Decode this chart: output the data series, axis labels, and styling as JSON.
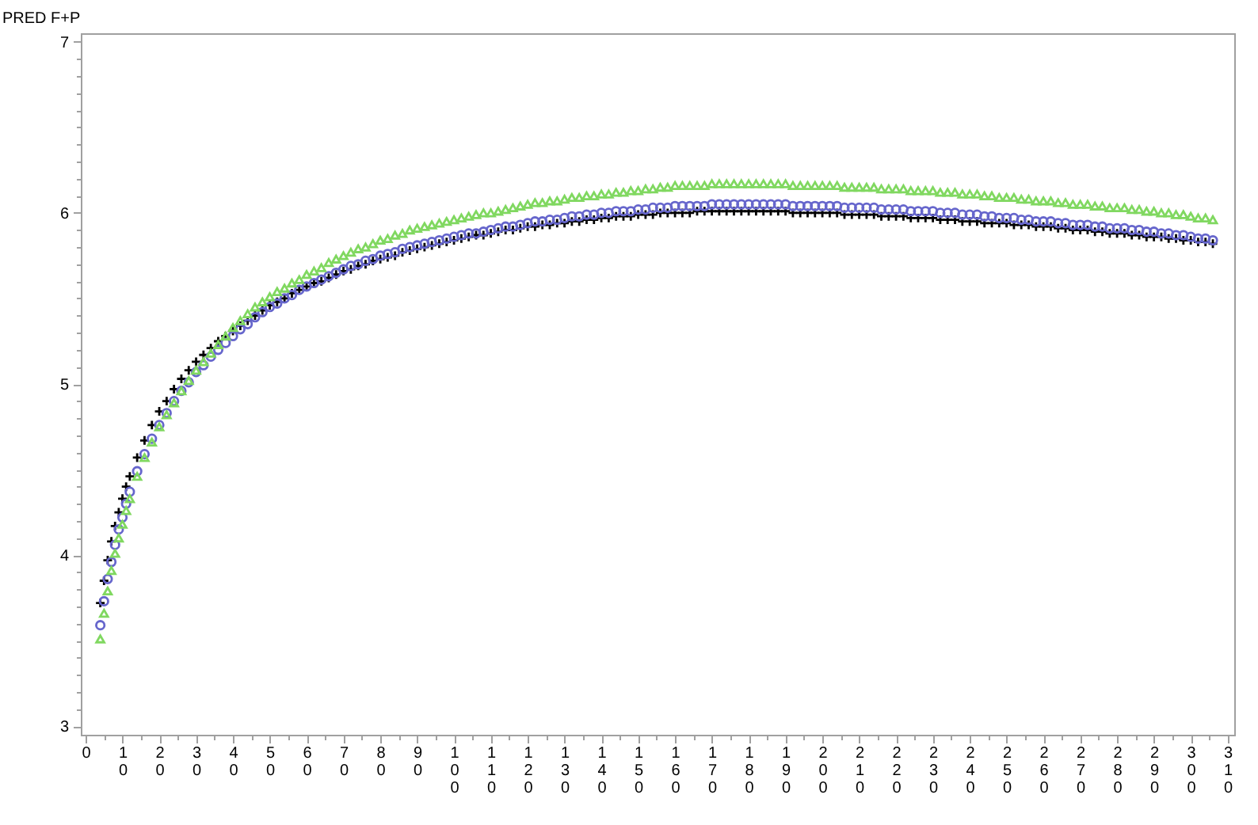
{
  "chart_data": {
    "type": "scatter",
    "ylabel": "PRED F+P",
    "x": [
      4,
      5,
      6,
      7,
      8,
      9,
      10,
      11,
      12,
      14,
      16,
      18,
      20,
      22,
      24,
      26,
      28,
      30,
      32,
      34,
      36,
      38,
      40,
      42,
      44,
      46,
      48,
      50,
      52,
      54,
      56,
      58,
      60,
      62,
      64,
      66,
      68,
      70,
      72,
      74,
      76,
      78,
      80,
      82,
      84,
      86,
      88,
      90,
      92,
      94,
      96,
      98,
      100,
      102,
      104,
      106,
      108,
      110,
      112,
      114,
      116,
      118,
      120,
      122,
      124,
      126,
      128,
      130,
      132,
      134,
      136,
      138,
      140,
      142,
      144,
      146,
      148,
      150,
      152,
      154,
      156,
      158,
      160,
      162,
      164,
      166,
      168,
      170,
      172,
      174,
      176,
      178,
      180,
      182,
      184,
      186,
      188,
      190,
      192,
      194,
      196,
      198,
      200,
      202,
      204,
      206,
      208,
      210,
      212,
      214,
      216,
      218,
      220,
      222,
      224,
      226,
      228,
      230,
      232,
      234,
      236,
      238,
      240,
      242,
      244,
      246,
      248,
      250,
      252,
      254,
      256,
      258,
      260,
      262,
      264,
      266,
      268,
      270,
      272,
      274,
      276,
      278,
      280,
      282,
      284,
      286,
      288,
      290,
      292,
      294,
      296,
      298,
      300,
      302,
      304,
      306
    ],
    "series": [
      {
        "color": "#000000",
        "marker": "cross",
        "values": [
          3.72,
          3.85,
          3.97,
          4.08,
          4.17,
          4.25,
          4.33,
          4.4,
          4.46,
          4.57,
          4.67,
          4.76,
          4.84,
          4.9,
          4.97,
          5.03,
          5.08,
          5.13,
          5.17,
          5.21,
          5.25,
          5.28,
          5.31,
          5.34,
          5.37,
          5.4,
          5.43,
          5.46,
          5.48,
          5.5,
          5.53,
          5.55,
          5.57,
          5.59,
          5.6,
          5.62,
          5.64,
          5.66,
          5.67,
          5.69,
          5.7,
          5.72,
          5.73,
          5.74,
          5.75,
          5.77,
          5.78,
          5.79,
          5.8,
          5.81,
          5.82,
          5.83,
          5.84,
          5.85,
          5.86,
          5.87,
          5.87,
          5.88,
          5.89,
          5.9,
          5.9,
          5.91,
          5.92,
          5.92,
          5.93,
          5.93,
          5.94,
          5.94,
          5.95,
          5.95,
          5.96,
          5.96,
          5.97,
          5.97,
          5.98,
          5.98,
          5.98,
          5.99,
          5.99,
          5.99,
          6.0,
          6.0,
          6.0,
          6.0,
          6.0,
          6.01,
          6.01,
          6.01,
          6.01,
          6.01,
          6.01,
          6.01,
          6.01,
          6.01,
          6.01,
          6.01,
          6.01,
          6.01,
          6.0,
          6.0,
          6.0,
          6.0,
          6.0,
          6.0,
          6.0,
          5.99,
          5.99,
          5.99,
          5.99,
          5.99,
          5.98,
          5.98,
          5.98,
          5.98,
          5.97,
          5.97,
          5.97,
          5.97,
          5.96,
          5.96,
          5.96,
          5.95,
          5.95,
          5.95,
          5.94,
          5.94,
          5.94,
          5.94,
          5.93,
          5.93,
          5.93,
          5.92,
          5.92,
          5.92,
          5.91,
          5.91,
          5.9,
          5.9,
          5.9,
          5.89,
          5.89,
          5.88,
          5.88,
          5.88,
          5.87,
          5.87,
          5.86,
          5.86,
          5.86,
          5.85,
          5.85,
          5.84,
          5.84,
          5.83,
          5.83,
          5.82
        ]
      },
      {
        "color": "#6666cc",
        "marker": "circle",
        "values": [
          3.59,
          3.73,
          3.86,
          3.96,
          4.06,
          4.15,
          4.22,
          4.3,
          4.37,
          4.49,
          4.59,
          4.68,
          4.76,
          4.83,
          4.9,
          4.96,
          5.01,
          5.07,
          5.11,
          5.16,
          5.2,
          5.24,
          5.28,
          5.32,
          5.35,
          5.39,
          5.42,
          5.45,
          5.47,
          5.5,
          5.52,
          5.55,
          5.57,
          5.59,
          5.61,
          5.63,
          5.65,
          5.67,
          5.69,
          5.7,
          5.72,
          5.73,
          5.75,
          5.76,
          5.77,
          5.79,
          5.8,
          5.81,
          5.82,
          5.83,
          5.84,
          5.85,
          5.86,
          5.87,
          5.88,
          5.88,
          5.89,
          5.9,
          5.91,
          5.92,
          5.92,
          5.93,
          5.94,
          5.95,
          5.95,
          5.96,
          5.96,
          5.97,
          5.98,
          5.98,
          5.99,
          5.99,
          6.0,
          6.0,
          6.01,
          6.01,
          6.01,
          6.02,
          6.02,
          6.03,
          6.03,
          6.03,
          6.04,
          6.04,
          6.04,
          6.04,
          6.04,
          6.05,
          6.05,
          6.05,
          6.05,
          6.05,
          6.05,
          6.05,
          6.05,
          6.05,
          6.05,
          6.05,
          6.04,
          6.04,
          6.04,
          6.04,
          6.04,
          6.04,
          6.04,
          6.03,
          6.03,
          6.03,
          6.03,
          6.03,
          6.02,
          6.02,
          6.02,
          6.02,
          6.01,
          6.01,
          6.01,
          6.01,
          6.0,
          6.0,
          6.0,
          5.99,
          5.99,
          5.99,
          5.98,
          5.98,
          5.97,
          5.97,
          5.97,
          5.96,
          5.96,
          5.95,
          5.95,
          5.95,
          5.94,
          5.94,
          5.93,
          5.93,
          5.93,
          5.92,
          5.92,
          5.91,
          5.91,
          5.91,
          5.9,
          5.9,
          5.89,
          5.89,
          5.88,
          5.88,
          5.87,
          5.87,
          5.86,
          5.85,
          5.85,
          5.84
        ]
      },
      {
        "color": "#80d860",
        "marker": "triangle",
        "values": [
          3.51,
          3.66,
          3.79,
          3.91,
          4.01,
          4.1,
          4.18,
          4.26,
          4.33,
          4.46,
          4.57,
          4.66,
          4.75,
          4.82,
          4.89,
          4.96,
          5.02,
          5.08,
          5.13,
          5.18,
          5.23,
          5.28,
          5.33,
          5.37,
          5.41,
          5.45,
          5.48,
          5.51,
          5.54,
          5.56,
          5.59,
          5.61,
          5.64,
          5.66,
          5.68,
          5.71,
          5.73,
          5.75,
          5.77,
          5.79,
          5.8,
          5.82,
          5.84,
          5.85,
          5.87,
          5.88,
          5.9,
          5.91,
          5.92,
          5.93,
          5.94,
          5.95,
          5.96,
          5.97,
          5.98,
          5.99,
          6.0,
          6.0,
          6.01,
          6.02,
          6.03,
          6.04,
          6.05,
          6.06,
          6.06,
          6.07,
          6.07,
          6.08,
          6.09,
          6.09,
          6.1,
          6.1,
          6.11,
          6.11,
          6.12,
          6.12,
          6.13,
          6.13,
          6.14,
          6.14,
          6.15,
          6.15,
          6.16,
          6.16,
          6.16,
          6.16,
          6.16,
          6.17,
          6.17,
          6.17,
          6.17,
          6.17,
          6.17,
          6.17,
          6.17,
          6.17,
          6.17,
          6.17,
          6.16,
          6.16,
          6.16,
          6.16,
          6.16,
          6.16,
          6.16,
          6.15,
          6.15,
          6.15,
          6.15,
          6.15,
          6.14,
          6.14,
          6.14,
          6.14,
          6.13,
          6.13,
          6.13,
          6.13,
          6.12,
          6.12,
          6.12,
          6.11,
          6.11,
          6.11,
          6.1,
          6.1,
          6.09,
          6.09,
          6.09,
          6.08,
          6.08,
          6.07,
          6.07,
          6.07,
          6.06,
          6.06,
          6.05,
          6.05,
          6.05,
          6.04,
          6.04,
          6.03,
          6.03,
          6.03,
          6.02,
          6.02,
          6.01,
          6.01,
          6.0,
          6.0,
          5.99,
          5.99,
          5.98,
          5.97,
          5.97,
          5.96
        ]
      }
    ],
    "xlim": [
      -1.3,
      311.8
    ],
    "ylim": [
      2.95,
      7.05
    ],
    "xticks": [
      0,
      {
        "value": 5,
        "label": null
      },
      10,
      {
        "value": 15,
        "label": null
      },
      20,
      {
        "value": 25,
        "label": null
      },
      30,
      {
        "value": 35,
        "label": null
      },
      40,
      {
        "value": 45,
        "label": null
      },
      50,
      {
        "value": 55,
        "label": null
      },
      60,
      {
        "value": 65,
        "label": null
      },
      70,
      {
        "value": 75,
        "label": null
      },
      80,
      {
        "value": 85,
        "label": null
      },
      90,
      {
        "value": 95,
        "label": null
      },
      100,
      {
        "value": 105,
        "label": null
      },
      110,
      {
        "value": 115,
        "label": null
      },
      120,
      {
        "value": 125,
        "label": null
      },
      130,
      {
        "value": 135,
        "label": null
      },
      140,
      {
        "value": 145,
        "label": null
      },
      150,
      {
        "value": 155,
        "label": null
      },
      160,
      {
        "value": 165,
        "label": null
      },
      170,
      {
        "value": 175,
        "label": null
      },
      180,
      {
        "value": 185,
        "label": null
      },
      190,
      {
        "value": 195,
        "label": null
      },
      200,
      {
        "value": 205,
        "label": null
      },
      210,
      {
        "value": 215,
        "label": null
      },
      220,
      {
        "value": 225,
        "label": null
      },
      230,
      {
        "value": 235,
        "label": null
      },
      240,
      {
        "value": 245,
        "label": null
      },
      250,
      {
        "value": 255,
        "label": null
      },
      260,
      {
        "value": 265,
        "label": null
      },
      270,
      {
        "value": 275,
        "label": null
      },
      280,
      {
        "value": 285,
        "label": null
      },
      290,
      {
        "value": 295,
        "label": null
      },
      300,
      {
        "value": 305,
        "label": null
      },
      310
    ],
    "yticks": [
      3,
      {
        "value": 3.1,
        "label": null
      },
      {
        "value": 3.2,
        "label": null
      },
      {
        "value": 3.3,
        "label": null
      },
      {
        "value": 3.4,
        "label": null
      },
      {
        "value": 3.5,
        "label": null
      },
      {
        "value": 3.6,
        "label": null
      },
      {
        "value": 3.7,
        "label": null
      },
      {
        "value": 3.8,
        "label": null
      },
      {
        "value": 3.9,
        "label": null
      },
      4,
      {
        "value": 4.1,
        "label": null
      },
      {
        "value": 4.2,
        "label": null
      },
      {
        "value": 4.3,
        "label": null
      },
      {
        "value": 4.4,
        "label": null
      },
      {
        "value": 4.5,
        "label": null
      },
      {
        "value": 4.6,
        "label": null
      },
      {
        "value": 4.7,
        "label": null
      },
      {
        "value": 4.8,
        "label": null
      },
      {
        "value": 4.9,
        "label": null
      },
      5,
      {
        "value": 5.1,
        "label": null
      },
      {
        "value": 5.2,
        "label": null
      },
      {
        "value": 5.3,
        "label": null
      },
      {
        "value": 5.4,
        "label": null
      },
      {
        "value": 5.5,
        "label": null
      },
      {
        "value": 5.6,
        "label": null
      },
      {
        "value": 5.7,
        "label": null
      },
      {
        "value": 5.8,
        "label": null
      },
      {
        "value": 5.9,
        "label": null
      },
      6,
      {
        "value": 6.1,
        "label": null
      },
      {
        "value": 6.2,
        "label": null
      },
      {
        "value": 6.3,
        "label": null
      },
      {
        "value": 6.4,
        "label": null
      },
      {
        "value": 6.5,
        "label": null
      },
      {
        "value": 6.6,
        "label": null
      },
      {
        "value": 6.7,
        "label": null
      },
      {
        "value": 6.8,
        "label": null
      },
      {
        "value": 6.9,
        "label": null
      },
      7
    ],
    "grid": false,
    "legend": false
  }
}
